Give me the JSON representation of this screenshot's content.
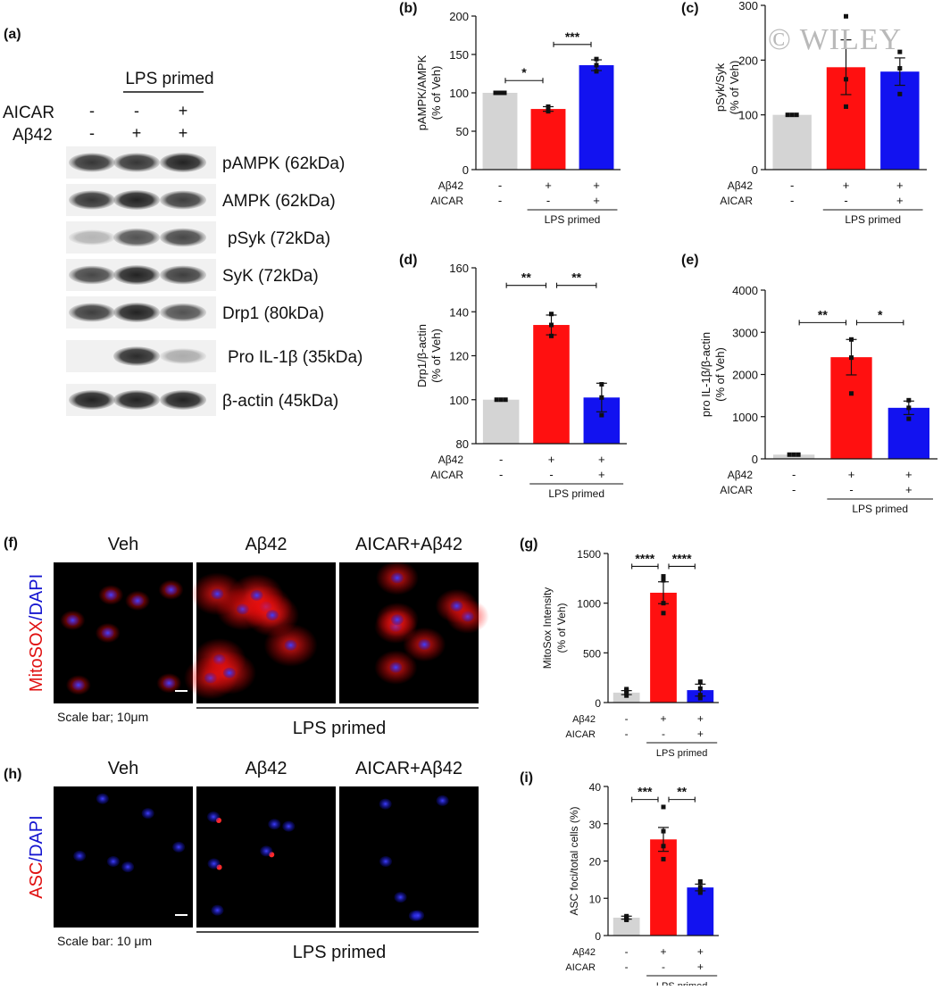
{
  "watermark": "© WILEY",
  "panel_a": {
    "letter": "(a)",
    "lps_primed": "LPS primed",
    "row_labels": [
      "AICAR",
      "Aβ42"
    ],
    "conditions": [
      {
        "aicar": "-",
        "ab42": "-"
      },
      {
        "aicar": "-",
        "ab42": "+"
      },
      {
        "aicar": "+",
        "ab42": "+"
      }
    ],
    "bands": [
      "pAMPK (62kDa)",
      "AMPK (62kDa)",
      "pSyk (72kDa)",
      "SyK (72kDa)",
      "Drp1 (80kDa)",
      "Pro IL-1β (35kDa)",
      "β-actin (45kDa)"
    ],
    "band_intensity": [
      [
        0.85,
        0.85,
        0.95
      ],
      [
        0.85,
        0.95,
        0.8
      ],
      [
        0.15,
        0.7,
        0.75
      ],
      [
        0.75,
        0.95,
        0.8
      ],
      [
        0.8,
        0.95,
        0.7
      ],
      [
        0.0,
        0.9,
        0.2
      ],
      [
        0.95,
        0.95,
        0.95
      ]
    ]
  },
  "panel_f": {
    "letter": "(f)",
    "headers": [
      "Veh",
      "Aβ42",
      "AICAR+Aβ42"
    ],
    "stain_red": "MitoSOX",
    "stain_sep": "/",
    "stain_blue": "DAPI",
    "scale_bar": "Scale bar; 10μm",
    "lps_primed": "LPS primed"
  },
  "panel_h": {
    "letter": "(h)",
    "headers": [
      "Veh",
      "Aβ42",
      "AICAR+Aβ42"
    ],
    "stain_red": "ASC",
    "stain_sep": "/",
    "stain_blue": "DAPI",
    "scale_bar": "Scale bar: 10 μm",
    "lps_primed": "LPS primed"
  },
  "colors": {
    "veh": "#d4d4d4",
    "ab42": "#ff1010",
    "aicar_ab42": "#1212f0"
  },
  "chart_data": [
    {
      "panel": "(b)",
      "type": "bar",
      "ylabel": [
        "pAMPK/AMPK",
        "(% of Veh)"
      ],
      "ylim": [
        0,
        200
      ],
      "yticks": [
        0,
        50,
        100,
        150,
        200
      ],
      "values": [
        100,
        79,
        136
      ],
      "errors": [
        0,
        3,
        7
      ],
      "points": [
        [
          100,
          100,
          100
        ],
        [
          76,
          80,
          82
        ],
        [
          128,
          136,
          144
        ]
      ],
      "ab42": [
        "-",
        "+",
        "+"
      ],
      "aicar": [
        "-",
        "-",
        "+"
      ],
      "row_labels": [
        "Aβ42",
        "AICAR"
      ],
      "footer": "LPS primed",
      "sig": [
        {
          "from": 0,
          "to": 1,
          "label": "*",
          "y": 116
        },
        {
          "from": 1,
          "to": 2,
          "label": "***",
          "y": 163
        }
      ]
    },
    {
      "panel": "(c)",
      "type": "bar",
      "ylabel": [
        "pSyk/Syk",
        "(% of Veh)"
      ],
      "ylim": [
        0,
        300
      ],
      "yticks": [
        0,
        100,
        200,
        300
      ],
      "values": [
        100,
        187,
        179
      ],
      "errors": [
        0,
        50,
        25
      ],
      "points": [
        [
          100,
          100,
          100
        ],
        [
          280,
          115,
          165
        ],
        [
          215,
          138,
          185
        ]
      ],
      "ab42": [
        "-",
        "+",
        "+"
      ],
      "aicar": [
        "-",
        "-",
        "+"
      ],
      "row_labels": [
        "Aβ42",
        "AICAR"
      ],
      "footer": "LPS primed",
      "sig": []
    },
    {
      "panel": "(d)",
      "type": "bar",
      "ylabel": [
        "Drp1/β-actin",
        "(% of  Veh)"
      ],
      "ylim": [
        80,
        160
      ],
      "yticks": [
        80,
        100,
        120,
        140,
        160
      ],
      "values": [
        100,
        134,
        101
      ],
      "errors": [
        0,
        4.5,
        6.5
      ],
      "points": [
        [
          100,
          100,
          100
        ],
        [
          139,
          134,
          129
        ],
        [
          107,
          101,
          93
        ]
      ],
      "ab42": [
        "-",
        "+",
        "+"
      ],
      "aicar": [
        "-",
        "-",
        "+"
      ],
      "row_labels": [
        "Aβ42",
        "AICAR"
      ],
      "footer": "LPS primed",
      "sig": [
        {
          "from": 0,
          "to": 1,
          "label": "**",
          "y": 152
        },
        {
          "from": 1,
          "to": 2,
          "label": "**",
          "y": 152
        }
      ]
    },
    {
      "panel": "(e)",
      "type": "bar",
      "ylabel": [
        "pro IL-1β/β-actin",
        "(% of Veh)"
      ],
      "ylim": [
        0,
        4000
      ],
      "yticks": [
        0,
        1000,
        2000,
        3000,
        4000
      ],
      "values": [
        100,
        2410,
        1210
      ],
      "errors": [
        0,
        420,
        160
      ],
      "points": [
        [
          100,
          100,
          100
        ],
        [
          2830,
          2400,
          1550
        ],
        [
          1390,
          1210,
          950
        ]
      ],
      "ab42": [
        "-",
        "+",
        "+"
      ],
      "aicar": [
        "-",
        "-",
        "+"
      ],
      "row_labels": [
        "Aβ42",
        "AICAR"
      ],
      "footer": "LPS primed",
      "sig": [
        {
          "from": 0,
          "to": 1,
          "label": "**",
          "y": 3230
        },
        {
          "from": 1,
          "to": 2,
          "label": "*",
          "y": 3230
        }
      ]
    },
    {
      "panel": "(g)",
      "type": "bar",
      "ylabel": [
        "MitoSox Intensity",
        "(% of Veh)"
      ],
      "ylim": [
        0,
        1500
      ],
      "yticks": [
        0,
        500,
        1000,
        1500
      ],
      "values": [
        100,
        1105,
        125
      ],
      "errors": [
        20,
        110,
        60
      ],
      "points": [
        [
          70,
          120,
          95,
          135
        ],
        [
          1270,
          1230,
          1000,
          900
        ],
        [
          210,
          140,
          75,
          45
        ]
      ],
      "ab42": [
        "-",
        "+",
        "+"
      ],
      "aicar": [
        "-",
        "-",
        "+"
      ],
      "row_labels": [
        "Aβ42",
        "AICAR"
      ],
      "footer": "LPS primed",
      "sig": [
        {
          "from": 0,
          "to": 1,
          "label": "****",
          "y": 1370
        },
        {
          "from": 1,
          "to": 2,
          "label": "****",
          "y": 1370
        }
      ]
    },
    {
      "panel": "(i)",
      "type": "bar",
      "ylabel": [
        "ASC foci/total cells (%)"
      ],
      "ylim": [
        0,
        40
      ],
      "yticks": [
        0,
        10,
        20,
        30,
        40
      ],
      "values": [
        4.8,
        25.8,
        12.9
      ],
      "errors": [
        0.4,
        3.2,
        0.9
      ],
      "points": [
        [
          4.2,
          4.9,
          5.2,
          4.4
        ],
        [
          34.5,
          28,
          24,
          20.5
        ],
        [
          14.5,
          13,
          12,
          11.5
        ]
      ],
      "ab42": [
        "-",
        "+",
        "+"
      ],
      "aicar": [
        "-",
        "-",
        "+"
      ],
      "row_labels": [
        "Aβ42",
        "AICAR"
      ],
      "footer": "LPS primed",
      "sig": [
        {
          "from": 0,
          "to": 1,
          "label": "***",
          "y": 36.5
        },
        {
          "from": 1,
          "to": 2,
          "label": "**",
          "y": 36.5
        }
      ]
    }
  ]
}
